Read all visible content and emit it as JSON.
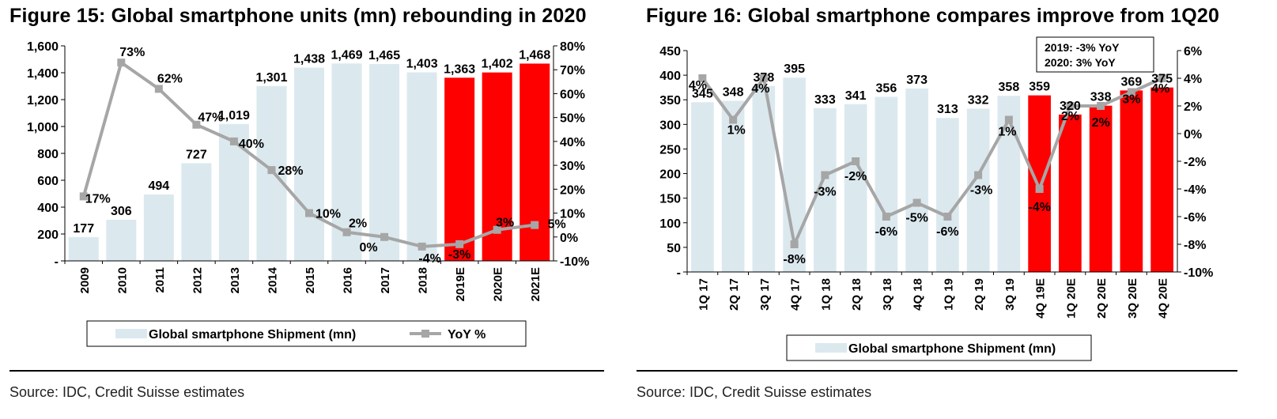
{
  "figures": [
    {
      "title": "Figure 15: Global smartphone units (mn) rebounding in 2020",
      "source": "Source: IDC, Credit Suisse estimates"
    },
    {
      "title": "Figure 16: Global smartphone compares improve from 1Q20",
      "source": "Source: IDC, Credit Suisse estimates"
    }
  ],
  "chart_data": [
    {
      "type": "bar",
      "title": "Figure 15: Global smartphone units (mn) rebounding in 2020",
      "categories": [
        "2009",
        "2010",
        "2011",
        "2012",
        "2013",
        "2014",
        "2015",
        "2016",
        "2017",
        "2018",
        "2019E",
        "2020E",
        "2021E"
      ],
      "series": [
        {
          "name": "Global smartphone Shipment (mn)",
          "type": "bar",
          "axis": "left",
          "values": [
            177,
            306,
            494,
            727,
            1019,
            1301,
            1438,
            1469,
            1465,
            1403,
            1363,
            1402,
            1468
          ],
          "labels": [
            "177",
            "306",
            "494",
            "727",
            "1,019",
            "1,301",
            "1,438",
            "1,469",
            "1,465",
            "1,403",
            "1,363",
            "1,402",
            "1,468"
          ],
          "estimate_from_index": 10
        },
        {
          "name": "YoY %",
          "type": "line",
          "axis": "right",
          "values": [
            17,
            73,
            62,
            47,
            40,
            28,
            10,
            2,
            0,
            -4,
            -3,
            3,
            5
          ],
          "labels": [
            "17%",
            "73%",
            "62%",
            "47%",
            "40%",
            "28%",
            "10%",
            "2%",
            "0%",
            "-4%",
            "-3%",
            "3%",
            "5%"
          ]
        }
      ],
      "left_axis": {
        "min": 0,
        "max": 1600,
        "step": 200,
        "ticks": [
          "-",
          "200",
          "400",
          "600",
          "800",
          "1,000",
          "1,200",
          "1,400",
          "1,600"
        ]
      },
      "right_axis": {
        "min": -10,
        "max": 80,
        "step": 10,
        "ticks": [
          "-10%",
          "0%",
          "10%",
          "20%",
          "30%",
          "40%",
          "50%",
          "60%",
          "70%",
          "80%"
        ]
      },
      "legend_position": "bottom",
      "grid": false,
      "colors": {
        "actual": "#dbe9ef",
        "estimate": "#ff0000",
        "line": "#a6a6a6"
      }
    },
    {
      "type": "bar",
      "title": "Figure 16: Global smartphone compares improve from 1Q20",
      "categories": [
        "1Q 17",
        "2Q 17",
        "3Q 17",
        "4Q 17",
        "1Q 18",
        "2Q 18",
        "3Q 18",
        "4Q 18",
        "1Q 19",
        "2Q 19",
        "3Q 19",
        "4Q 19E",
        "1Q 20E",
        "2Q 20E",
        "3Q 20E",
        "4Q 20E"
      ],
      "series": [
        {
          "name": "Global smartphone Shipment (mn)",
          "type": "bar",
          "axis": "left",
          "values": [
            345,
            348,
            378,
            395,
            333,
            341,
            356,
            373,
            313,
            332,
            358,
            359,
            320,
            338,
            369,
            375
          ],
          "labels": [
            "345",
            "348",
            "378",
            "395",
            "333",
            "341",
            "356",
            "373",
            "313",
            "332",
            "358",
            "359",
            "320",
            "338",
            "369",
            "375"
          ],
          "estimate_from_index": 11
        },
        {
          "type": "line",
          "axis": "right",
          "values": [
            4,
            1,
            4,
            -8,
            -3,
            -2,
            -6,
            -5,
            -6,
            -3,
            1,
            -4,
            2,
            2,
            3,
            4
          ],
          "labels": [
            "4%",
            "1%",
            "4%",
            "-8%",
            "-3%",
            "-2%",
            "-6%",
            "-5%",
            "-6%",
            "-3%",
            "1%",
            "-4%",
            "2%",
            "2%",
            "3%",
            "4%"
          ]
        }
      ],
      "left_axis": {
        "min": 0,
        "max": 450,
        "step": 50,
        "ticks": [
          "-",
          "50",
          "100",
          "150",
          "200",
          "250",
          "300",
          "350",
          "400",
          "450"
        ]
      },
      "right_axis": {
        "min": -10,
        "max": 6,
        "step": 2,
        "ticks": [
          "-10%",
          "-8%",
          "-6%",
          "-4%",
          "-2%",
          "0%",
          "2%",
          "4%",
          "6%"
        ]
      },
      "annotation": [
        "2019: -3% YoY",
        "2020: 3% YoY"
      ],
      "legend_position": "bottom",
      "grid": false,
      "colors": {
        "actual": "#dbe9ef",
        "estimate": "#ff0000",
        "line": "#a6a6a6"
      }
    }
  ]
}
